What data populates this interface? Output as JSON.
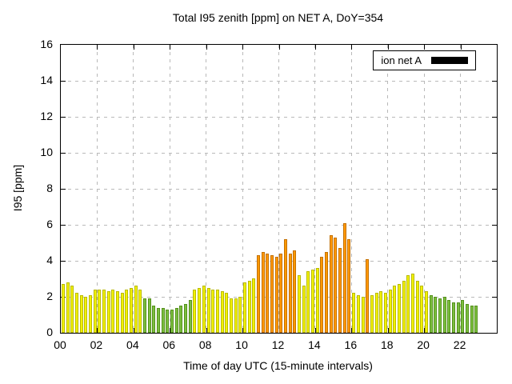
{
  "legend": {
    "label": "ion net A"
  },
  "chart_data": {
    "type": "bar",
    "title": "Total I95 zenith [ppm] on NET A, DoY=354",
    "xlabel": "Time of day UTC (15-minute intervals)",
    "ylabel": "I95 [ppm]",
    "ylim": [
      0,
      16
    ],
    "xlim_hours": [
      0,
      24
    ],
    "grid": true,
    "legend_position": "top-right",
    "interval_minutes": 15,
    "start_time": "00:00",
    "y_ticks": [
      0,
      2,
      4,
      6,
      8,
      10,
      12,
      14,
      16
    ],
    "x_ticks": [
      "00",
      "02",
      "04",
      "06",
      "08",
      "10",
      "12",
      "14",
      "16",
      "18",
      "20",
      "22"
    ],
    "values": [
      2.7,
      2.8,
      2.6,
      2.2,
      2.1,
      2.0,
      2.1,
      2.4,
      2.4,
      2.4,
      2.3,
      2.4,
      2.3,
      2.2,
      2.4,
      2.5,
      2.6,
      2.4,
      1.9,
      1.9,
      1.5,
      1.4,
      1.4,
      1.3,
      1.3,
      1.4,
      1.5,
      1.6,
      1.8,
      2.4,
      2.5,
      2.6,
      2.5,
      2.4,
      2.4,
      2.3,
      2.2,
      1.9,
      1.9,
      2.0,
      2.8,
      2.9,
      3.0,
      4.3,
      4.5,
      4.4,
      4.3,
      4.2,
      4.4,
      5.2,
      4.4,
      4.6,
      3.2,
      2.6,
      3.4,
      3.5,
      3.6,
      4.2,
      4.5,
      5.4,
      5.3,
      4.7,
      6.1,
      5.2,
      2.2,
      2.1,
      2.0,
      4.1,
      2.1,
      2.2,
      2.3,
      2.2,
      2.4,
      2.6,
      2.7,
      2.9,
      3.2,
      3.3,
      2.9,
      2.6,
      2.3,
      2.1,
      2.0,
      1.9,
      2.0,
      1.8,
      1.7,
      1.7,
      1.8,
      1.6,
      1.5,
      1.5
    ],
    "color_keys": [
      "y",
      "y",
      "y",
      "y",
      "y",
      "y",
      "y",
      "y",
      "y",
      "y",
      "y",
      "y",
      "y",
      "y",
      "y",
      "y",
      "y",
      "y",
      "g",
      "g",
      "g",
      "g",
      "g",
      "g",
      "g",
      "g",
      "g",
      "g",
      "g",
      "y",
      "y",
      "y",
      "y",
      "y",
      "y",
      "y",
      "y",
      "y",
      "y",
      "y",
      "y",
      "y",
      "y",
      "o",
      "o",
      "o",
      "o",
      "o",
      "o",
      "o",
      "o",
      "o",
      "y",
      "y",
      "y",
      "y",
      "y",
      "o",
      "o",
      "o",
      "o",
      "o",
      "o",
      "o",
      "y",
      "y",
      "y",
      "o",
      "y",
      "y",
      "y",
      "y",
      "y",
      "y",
      "y",
      "y",
      "y",
      "y",
      "y",
      "y",
      "y",
      "g",
      "g",
      "g",
      "g",
      "g",
      "g",
      "g",
      "g",
      "g",
      "g",
      "g"
    ],
    "color_map": {
      "y": {
        "name": "yellow",
        "fill": "#f2f202",
        "border": "#b9b900"
      },
      "g": {
        "name": "green",
        "fill": "#7cbf3f",
        "border": "#55901c"
      },
      "o": {
        "name": "orange",
        "fill": "#ff9900",
        "border": "#c37000"
      }
    },
    "grid_color": "#b9b9b9",
    "axis_color": "#000000"
  }
}
